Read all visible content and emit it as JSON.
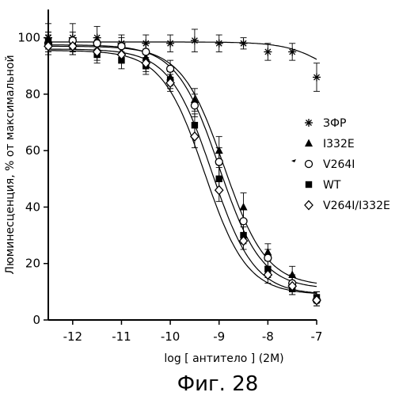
{
  "figure": {
    "caption": "Фиг. 28"
  },
  "chart_data": {
    "type": "scatter",
    "xlabel": "log [ антитело ] (2M)",
    "ylabel": "Люминесценция, % от максимальной",
    "xlim": [
      -12.5,
      -7
    ],
    "ylim": [
      0,
      110
    ],
    "x_ticks": [
      -12,
      -11,
      -10,
      -9,
      -8,
      -7
    ],
    "y_ticks": [
      0,
      20,
      40,
      60,
      80,
      100
    ],
    "grid": false,
    "legend_position": "right",
    "series": [
      {
        "name": "ЗФР",
        "marker": "asterisk",
        "x": [
          -12.5,
          -12,
          -11.5,
          -11,
          -10.5,
          -10,
          -9.5,
          -9,
          -8.5,
          -8,
          -7.5,
          -7
        ],
        "y": [
          100,
          100,
          100,
          98,
          98,
          98,
          99,
          98,
          98,
          95,
          95,
          86
        ],
        "err": [
          5,
          5,
          4,
          3,
          3,
          3,
          4,
          3,
          2,
          3,
          3,
          5
        ],
        "fit": {
          "top": 98.5,
          "bottom": 80,
          "ec50_log": -6.7,
          "hill": 1
        }
      },
      {
        "name": "I332E",
        "marker": "triangle",
        "x": [
          -12.5,
          -12,
          -11.5,
          -11,
          -10.5,
          -10,
          -9.5,
          -9,
          -8.5,
          -8,
          -7.5,
          -7
        ],
        "y": [
          99,
          97,
          96,
          95,
          93,
          86,
          78,
          60,
          40,
          24,
          16,
          8
        ],
        "err": [
          3,
          3,
          3,
          3,
          3,
          3,
          4,
          5,
          5,
          3,
          3,
          2
        ],
        "fit": {
          "top": 97,
          "bottom": 12,
          "ec50_log": -8.9,
          "hill": 1
        }
      },
      {
        "name": "V264I",
        "marker": "circle",
        "x": [
          -12.5,
          -12,
          -11.5,
          -11,
          -10.5,
          -10,
          -9.5,
          -9,
          -8.5,
          -8,
          -7.5,
          -7
        ],
        "y": [
          98,
          99,
          98,
          97,
          95,
          89,
          76,
          56,
          35,
          22,
          13,
          7
        ],
        "err": [
          3,
          3,
          2,
          3,
          3,
          3,
          4,
          5,
          4,
          3,
          3,
          2
        ],
        "fit": {
          "top": 97.5,
          "bottom": 11,
          "ec50_log": -9.0,
          "hill": 1
        }
      },
      {
        "name": "WT",
        "marker": "square",
        "x": [
          -12.5,
          -12,
          -11.5,
          -11,
          -10.5,
          -10,
          -9.5,
          -9,
          -8.5,
          -8,
          -7.5,
          -7
        ],
        "y": [
          99,
          97,
          94,
          92,
          90,
          85,
          69,
          50,
          30,
          18,
          11,
          8
        ],
        "err": [
          3,
          3,
          3,
          3,
          3,
          3,
          4,
          4,
          3,
          3,
          2,
          2
        ],
        "fit": {
          "top": 96,
          "bottom": 9,
          "ec50_log": -9.15,
          "hill": 1
        }
      },
      {
        "name": "V264I/I332E",
        "marker": "diamond",
        "x": [
          -12.5,
          -12,
          -11.5,
          -11,
          -10.5,
          -10,
          -9.5,
          -9,
          -8.5,
          -8,
          -7.5,
          -7
        ],
        "y": [
          97,
          97,
          95,
          94,
          91,
          84,
          65,
          46,
          28,
          16,
          12,
          7
        ],
        "err": [
          3,
          3,
          3,
          3,
          3,
          3,
          4,
          4,
          3,
          3,
          3,
          2
        ],
        "fit": {
          "top": 95.5,
          "bottom": 9,
          "ec50_log": -9.3,
          "hill": 1
        }
      }
    ]
  }
}
